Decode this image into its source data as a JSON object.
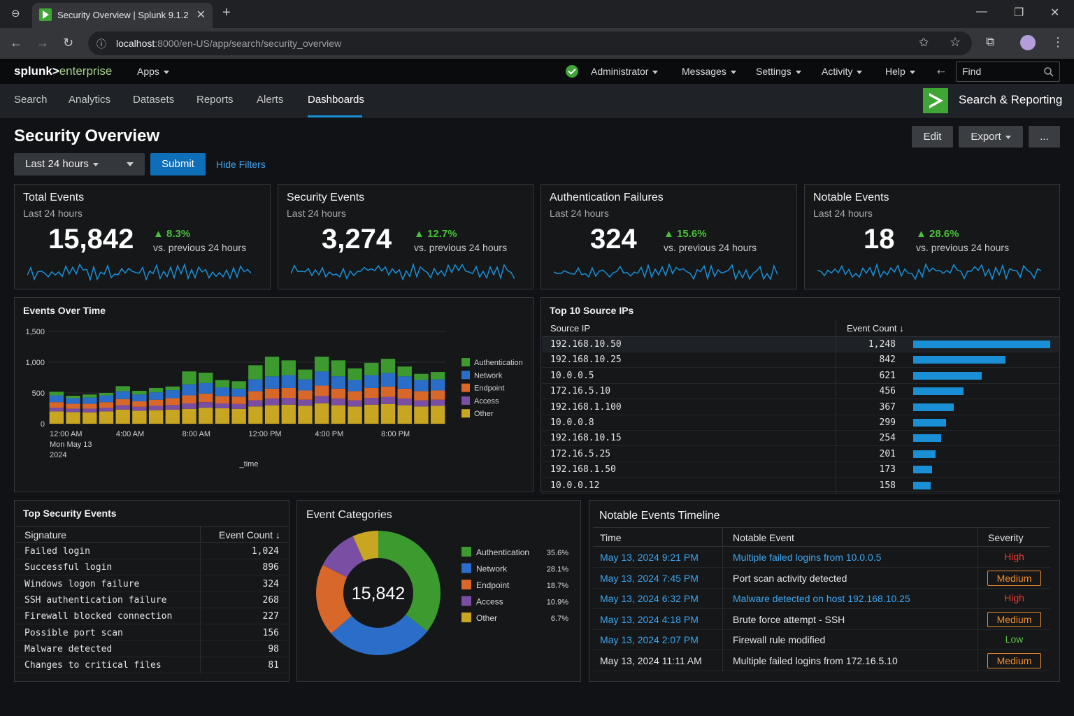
{
  "browser": {
    "tab_title": "Security Overview | Splunk 9.1.2",
    "url_host": "localhost",
    "url_rest": ":8000/en-US/app/search/security_overview"
  },
  "topbar": {
    "logo_main": "splunk>",
    "logo_sub": "enterprise",
    "apps": "Apps",
    "administrator": "Administrator",
    "messages": "Messages",
    "settings": "Settings",
    "activity": "Activity",
    "help": "Help",
    "find_placeholder": "Find"
  },
  "appbar": {
    "nav": [
      "Search",
      "Analytics",
      "Datasets",
      "Reports",
      "Alerts",
      "Dashboards"
    ],
    "active": "Dashboards",
    "app_name": "Search & Reporting"
  },
  "dashboard": {
    "title": "Security Overview",
    "edit": "Edit",
    "export": "Export",
    "more": "...",
    "time_range": "Last 24 hours",
    "submit": "Submit",
    "hide_filters": "Hide Filters"
  },
  "kpis": [
    {
      "title": "Total Events",
      "sub": "Last 24 hours",
      "value": "15,842",
      "delta": "▲ 8.3%",
      "delta_label": "vs. previous 24 hours"
    },
    {
      "title": "Security Events",
      "sub": "Last 24 hours",
      "value": "3,274",
      "delta": "▲ 12.7%",
      "delta_label": "vs. previous 24 hours"
    },
    {
      "title": "Authentication Failures",
      "sub": "Last 24 hours",
      "value": "324",
      "delta": "▲ 15.6%",
      "delta_label": "vs. previous 24 hours"
    },
    {
      "title": "Notable Events",
      "sub": "Last 24 hours",
      "value": "18",
      "delta": "▲ 28.6%",
      "delta_label": "vs. previous 24 hours"
    }
  ],
  "colors": {
    "authentication": "#3c9a2f",
    "network": "#2a6ec9",
    "endpoint": "#d8672a",
    "access": "#7a4fa3",
    "other": "#c9a621",
    "accent": "#1a8fd5"
  },
  "chart_data": [
    {
      "type": "bar",
      "stacked": true,
      "title": "Events Over Time",
      "xlabel": "_time",
      "ylabel": "",
      "ylim": [
        0,
        1500
      ],
      "yticks": [
        0,
        500,
        1000,
        1500
      ],
      "ytick_labels": [
        "0",
        "500",
        "1,000",
        "1,500"
      ],
      "xtick_labels": [
        {
          "index": 0,
          "lines": [
            "12:00 AM",
            "Mon May 13",
            "2024"
          ]
        },
        {
          "index": 4,
          "lines": [
            "4:00 AM"
          ]
        },
        {
          "index": 8,
          "lines": [
            "8:00 AM"
          ]
        },
        {
          "index": 12,
          "lines": [
            "12:00 PM"
          ]
        },
        {
          "index": 16,
          "lines": [
            "4:00 PM"
          ]
        },
        {
          "index": 20,
          "lines": [
            "8:00 PM"
          ]
        }
      ],
      "categories": [
        "12:00 AM",
        "1:00 AM",
        "2:00 AM",
        "3:00 AM",
        "4:00 AM",
        "5:00 AM",
        "6:00 AM",
        "7:00 AM",
        "8:00 AM",
        "9:00 AM",
        "10:00 AM",
        "11:00 AM",
        "12:00 PM",
        "1:00 PM",
        "2:00 PM",
        "3:00 PM",
        "4:00 PM",
        "5:00 PM",
        "6:00 PM",
        "7:00 PM",
        "8:00 PM",
        "9:00 PM",
        "10:00 PM",
        "11:00 PM"
      ],
      "legend_position": "right",
      "series": [
        {
          "name": "Other",
          "values": [
            200,
            190,
            185,
            200,
            230,
            210,
            220,
            230,
            240,
            260,
            250,
            240,
            280,
            300,
            310,
            290,
            330,
            300,
            280,
            310,
            320,
            300,
            280,
            290
          ]
        },
        {
          "name": "Access",
          "values": [
            60,
            55,
            60,
            60,
            70,
            65,
            70,
            75,
            90,
            90,
            80,
            80,
            100,
            110,
            110,
            100,
            120,
            110,
            100,
            110,
            115,
            110,
            100,
            100
          ]
        },
        {
          "name": "Endpoint",
          "values": [
            90,
            80,
            80,
            90,
            100,
            90,
            100,
            110,
            130,
            140,
            120,
            120,
            150,
            160,
            160,
            150,
            170,
            160,
            150,
            160,
            170,
            160,
            150,
            150
          ]
        },
        {
          "name": "Network",
          "values": [
            110,
            90,
            100,
            110,
            130,
            110,
            120,
            130,
            180,
            170,
            140,
            130,
            190,
            200,
            210,
            180,
            230,
            200,
            180,
            210,
            220,
            200,
            180,
            180
          ]
        },
        {
          "name": "Authentication",
          "values": [
            60,
            40,
            50,
            40,
            80,
            60,
            70,
            60,
            210,
            170,
            120,
            120,
            230,
            320,
            240,
            160,
            240,
            260,
            190,
            200,
            230,
            160,
            100,
            120
          ]
        }
      ]
    },
    {
      "type": "pie",
      "title": "Event Categories",
      "center_label": "15,842",
      "categories": [
        "Authentication",
        "Network",
        "Endpoint",
        "Access",
        "Other"
      ],
      "values": [
        35.6,
        28.1,
        18.7,
        10.9,
        6.7
      ],
      "value_labels": [
        "35.6%",
        "28.1%",
        "18.7%",
        "10.9%",
        "6.7%"
      ],
      "legend_position": "right"
    }
  ],
  "top_ips": {
    "title": "Top 10 Source IPs",
    "col_ip": "Source IP",
    "col_count": "Event Count ↓",
    "rows": [
      {
        "ip": "192.168.10.50",
        "count": 1248,
        "count_label": "1,248"
      },
      {
        "ip": "192.168.10.25",
        "count": 842,
        "count_label": "842"
      },
      {
        "ip": "10.0.0.5",
        "count": 621,
        "count_label": "621"
      },
      {
        "ip": "172.16.5.10",
        "count": 456,
        "count_label": "456"
      },
      {
        "ip": "192.168.1.100",
        "count": 367,
        "count_label": "367"
      },
      {
        "ip": "10.0.0.8",
        "count": 299,
        "count_label": "299"
      },
      {
        "ip": "192.168.10.15",
        "count": 254,
        "count_label": "254"
      },
      {
        "ip": "172.16.5.25",
        "count": 201,
        "count_label": "201"
      },
      {
        "ip": "192.168.1.50",
        "count": 173,
        "count_label": "173"
      },
      {
        "ip": "10.0.0.12",
        "count": 158,
        "count_label": "158"
      }
    ]
  },
  "top_security": {
    "title": "Top Security Events",
    "col_sig": "Signature",
    "col_count": "Event Count ↓",
    "rows": [
      {
        "sig": "Failed login",
        "count": "1,024"
      },
      {
        "sig": "Successful login",
        "count": "896"
      },
      {
        "sig": "Windows logon failure",
        "count": "324"
      },
      {
        "sig": "SSH authentication failure",
        "count": "268"
      },
      {
        "sig": "Firewall blocked connection",
        "count": "227"
      },
      {
        "sig": "Possible port scan",
        "count": "156"
      },
      {
        "sig": "Malware detected",
        "count": "98"
      },
      {
        "sig": "Changes to critical files",
        "count": "81"
      }
    ]
  },
  "notable": {
    "title": "Notable Events Timeline",
    "col_time": "Time",
    "col_event": "Notable Event",
    "col_sev": "Severity",
    "rows": [
      {
        "time": "May 13, 2024 9:21 PM",
        "event": "Multiple failed logins from 10.0.0.5",
        "severity": "High",
        "sev_class": "high",
        "link": true
      },
      {
        "time": "May 13, 2024 7:45 PM",
        "event": "Port scan activity detected",
        "severity": "Medium",
        "sev_class": "medium",
        "link": false
      },
      {
        "time": "May 13, 2024 6:32 PM",
        "event": "Malware detected on host 192.168.10.25",
        "severity": "High",
        "sev_class": "high",
        "link": true
      },
      {
        "time": "May 13, 2024 4:18 PM",
        "event": "Brute force attempt - SSH",
        "severity": "Medium",
        "sev_class": "medium",
        "link": false
      },
      {
        "time": "May 13, 2024 2:07 PM",
        "event": "Firewall rule modified",
        "severity": "Low",
        "sev_class": "low",
        "link": false
      },
      {
        "time": "May 13, 2024 11:11 AM",
        "event": "Multiple failed logins from 172.16.5.10",
        "severity": "Medium",
        "sev_class": "medium",
        "link": false
      }
    ]
  }
}
